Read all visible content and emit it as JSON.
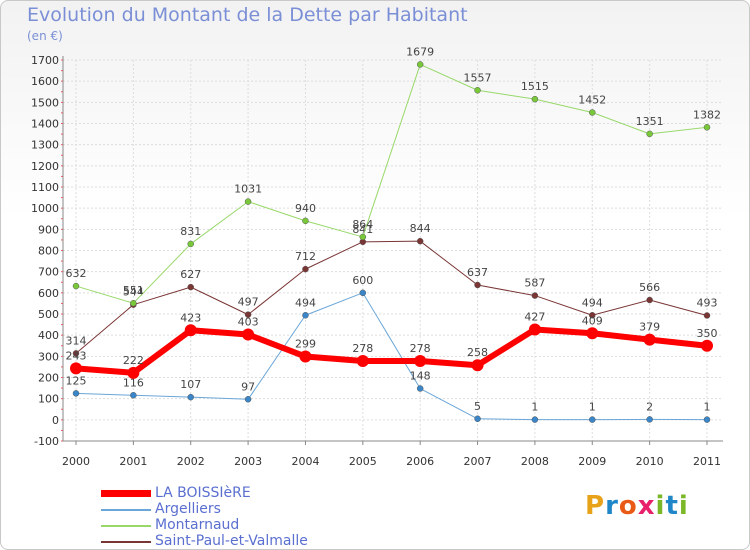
{
  "title": "Evolution du Montant de la Dette par Habitant",
  "unit": "(en €)",
  "logo": {
    "parts": [
      {
        "t": "P",
        "color": "#e8a21a"
      },
      {
        "t": "r",
        "color": "#1f86c8"
      },
      {
        "t": "o",
        "color": "#e85a16"
      },
      {
        "t": "x",
        "color": "#e81f6a"
      },
      {
        "t": "i",
        "color": "#7ab828"
      },
      {
        "t": "t",
        "color": "#1f86c8"
      },
      {
        "t": "i",
        "color": "#7ab828"
      }
    ]
  },
  "chart_data": {
    "type": "line",
    "x": [
      "2000",
      "2001",
      "2002",
      "2003",
      "2004",
      "2005",
      "2006",
      "2007",
      "2008",
      "2009",
      "2010",
      "2011"
    ],
    "ylim": [
      -100,
      1700
    ],
    "yticks": [
      "-100",
      "0",
      "100",
      "200",
      "300",
      "400",
      "500",
      "600",
      "700",
      "800",
      "900",
      "1000",
      "1100",
      "1200",
      "1300",
      "1400",
      "1500",
      "1600",
      "1700"
    ],
    "grid": true,
    "legend_position": "bottom-left",
    "series": [
      {
        "name": "Saint-Paul-et-Valmalle",
        "color": "#7a3535",
        "marker": "#7a3535",
        "width": 1,
        "values": [
          314,
          544,
          627,
          497,
          712,
          841,
          844,
          637,
          587,
          494,
          566,
          493
        ],
        "labels": [
          "314",
          "544",
          "627",
          "497",
          "712",
          "841",
          "844",
          "637",
          "587",
          "494",
          "566",
          "493"
        ]
      },
      {
        "name": "Montarnaud",
        "color": "#98d86a",
        "marker": "#78c83a",
        "width": 1,
        "values": [
          632,
          551,
          831,
          1031,
          940,
          864,
          1679,
          1557,
          1515,
          1452,
          1351,
          1382
        ],
        "labels": [
          "632",
          "551",
          "831",
          "1031",
          "940",
          "864",
          "1679",
          "1557",
          "1515",
          "1452",
          "1351",
          "1382"
        ]
      },
      {
        "name": "Argelliers",
        "color": "#6aa6d8",
        "marker": "#3a86c8",
        "width": 1,
        "values": [
          125,
          116,
          107,
          97,
          494,
          600,
          148,
          5,
          1,
          1,
          2,
          1
        ],
        "labels": [
          "125",
          "116",
          "107",
          "97",
          "494",
          "600",
          "148",
          "5",
          "1",
          "1",
          "2",
          "1"
        ]
      },
      {
        "name": "LA BOISSIèRE",
        "color": "#ff0000",
        "marker": "#ff0000",
        "width": 6,
        "values": [
          243,
          222,
          423,
          403,
          299,
          278,
          278,
          258,
          427,
          409,
          379,
          350
        ],
        "labels": [
          "243",
          "222",
          "423",
          "403",
          "299",
          "278",
          "278",
          "258",
          "427",
          "409",
          "379",
          "350"
        ]
      }
    ],
    "legend": [
      "LA BOISSIèRE",
      "Argelliers",
      "Montarnaud",
      "Saint-Paul-et-Valmalle"
    ]
  }
}
